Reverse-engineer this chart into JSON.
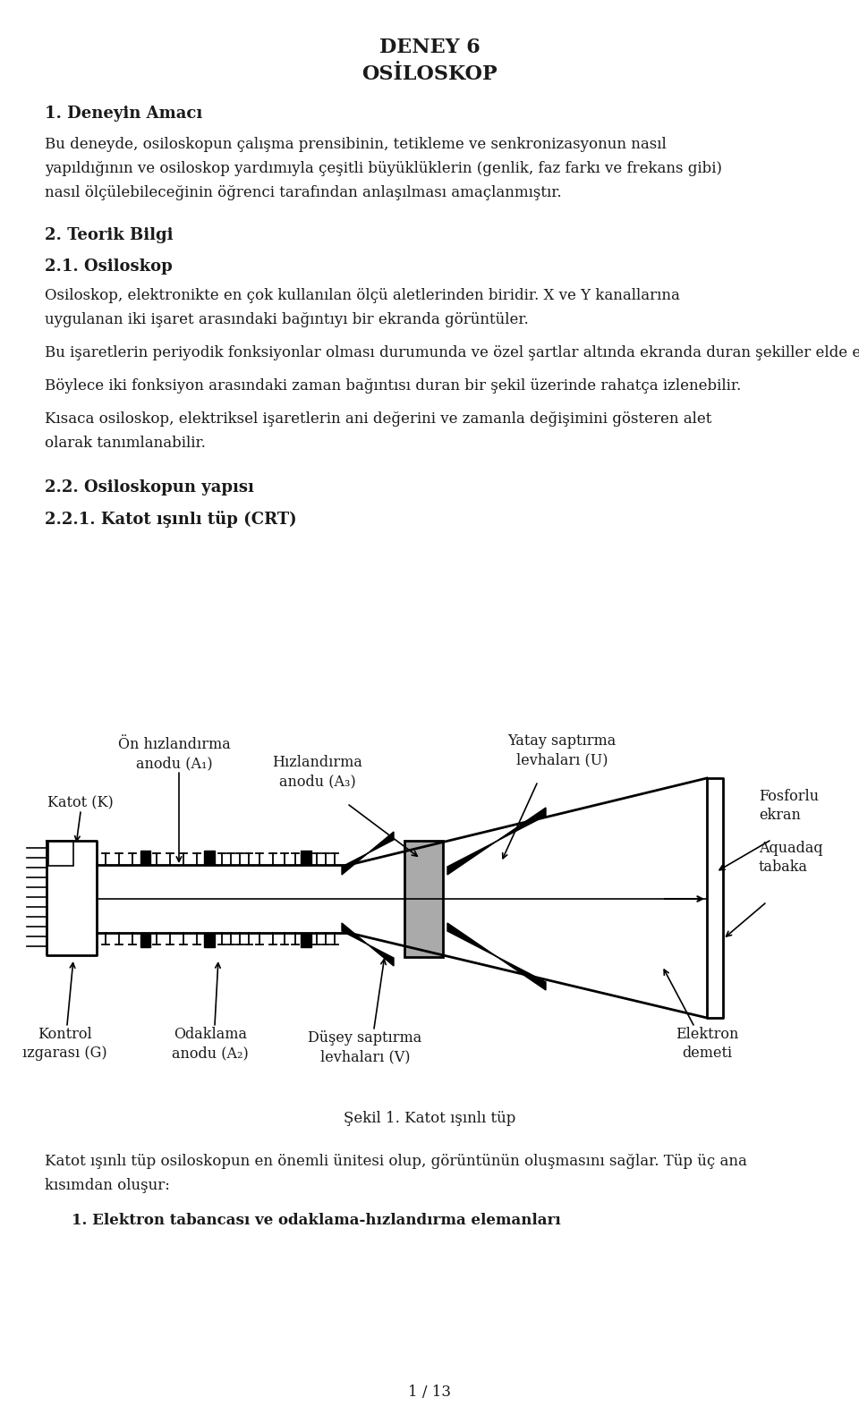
{
  "title_line1": "DENEY 6",
  "title_line2": "OSİLOSKOP",
  "section1_heading": "1. Deneyin Amacı",
  "section1_body_lines": [
    "Bu deneyde, osiloskopun çalışma prensibinin, tetikleme ve senkronizasyonun nasıl",
    "yapıldığının ve osiloskop yardımıyla çeşitli büyüklüklerin (genlik, faz farkı ve frekans gibi)",
    "nasıl ölçülebileceğinin öğrenci tarafından anlaşılması amaçlanmıştır."
  ],
  "section2_heading": "2. Teorik Bilgi",
  "section21_heading": "2.1. Osiloskop",
  "section21_para1_lines": [
    "Osiloskop, elektronikte en çok kullanılan ölçü aletlerinden biridir. X ve Y kanallarına",
    "uygulanan iki işaret arasındaki bağıntıyı bir ekranda görüntüler."
  ],
  "section21_para2_lines": [
    "Bu işaretlerin periyodik fonksiyonlar olması durumunda ve özel şartlar altında ekranda duran şekiller elde edilir."
  ],
  "section21_para3_lines": [
    "Böylece iki fonksiyon arasındaki zaman bağıntısı duran bir şekil üzerinde rahatça izlenebilir."
  ],
  "section21_para4_lines": [
    "Kısaca osiloskop, elektriksel işaretlerin ani değerini ve zamanla değişimini gösteren alet",
    "olarak tanımlanabilir."
  ],
  "section22_heading": "2.2. Osiloskopun yapısı",
  "section221_heading": "2.2.1. Katot ışınlı tüp (CRT)",
  "fig_caption": "Şekil 1. Katot ışınlı tüp",
  "body_after_fig_lines": [
    "Katot ışınlı tüp osiloskopun en önemli ünitesi olup, görüntünün oluşmasını sağlar. Tüp üç ana",
    "kısımdan oluşur:"
  ],
  "list_item1": "1. Elektron tabancası ve odaklama-hızlandırma elemanları",
  "page_footer": "1 / 13",
  "label_katot": "Katot (K)",
  "label_on_hiz_line1": "Ön hızlandırma",
  "label_on_hiz_line2": "anodu (A₁)",
  "label_hizlandirma_line1": "Hızlandırma",
  "label_hizlandirma_line2": "anodu (A₃)",
  "label_yatay_line1": "Yatay saptırma",
  "label_yatay_line2": "levhaları (U)",
  "label_fosforlu_line1": "Fosforlu",
  "label_fosforlu_line2": "ekran",
  "label_aquadaq_line1": "Aquadaq",
  "label_aquadaq_line2": "tabaka",
  "label_kontrol_line1": "Kontrol",
  "label_kontrol_line2": "ızgarası (G)",
  "label_odaklama_line1": "Odaklama",
  "label_odaklama_line2": "anodu (A₂)",
  "label_dusey_line1": "Düşey saptırma",
  "label_dusey_line2": "levhaları (V)",
  "label_elektron_line1": "Elektron",
  "label_elektron_line2": "demeti",
  "bg_color": "#ffffff",
  "text_color": "#1a1a1a",
  "font_family": "DejaVu Serif"
}
